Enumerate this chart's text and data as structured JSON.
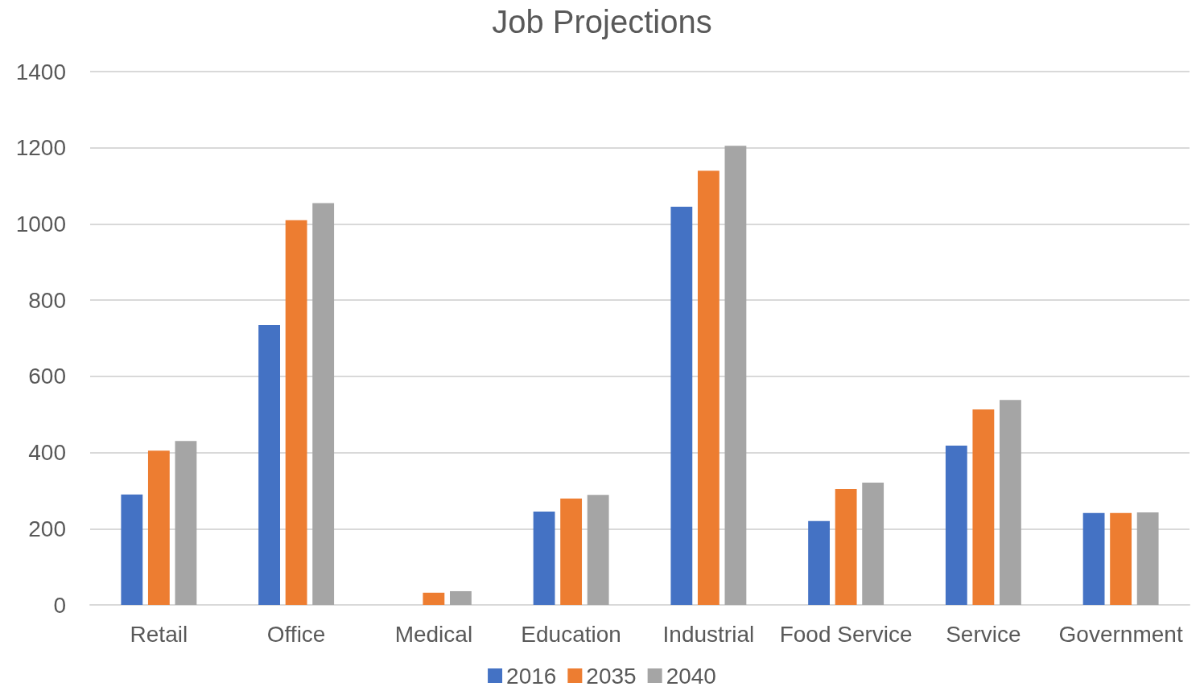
{
  "chart_data": {
    "type": "bar",
    "title": "Job Projections",
    "categories": [
      "Retail",
      "Office",
      "Medical",
      "Education",
      "Industrial",
      "Food Service",
      "Service",
      "Government"
    ],
    "series": [
      {
        "name": "2016",
        "color": "#4472c4",
        "values": [
          290,
          735,
          0,
          245,
          1045,
          220,
          418,
          241
        ]
      },
      {
        "name": "2035",
        "color": "#ed7d31",
        "values": [
          405,
          1010,
          32,
          279,
          1140,
          304,
          513,
          241
        ]
      },
      {
        "name": "2040",
        "color": "#a5a5a5",
        "values": [
          430,
          1055,
          36,
          289,
          1205,
          321,
          538,
          243
        ]
      }
    ],
    "ylim": [
      0,
      1400
    ],
    "yticks": [
      0,
      200,
      400,
      600,
      800,
      1000,
      1200,
      1400
    ],
    "grid": "y",
    "legend": "bottom"
  }
}
